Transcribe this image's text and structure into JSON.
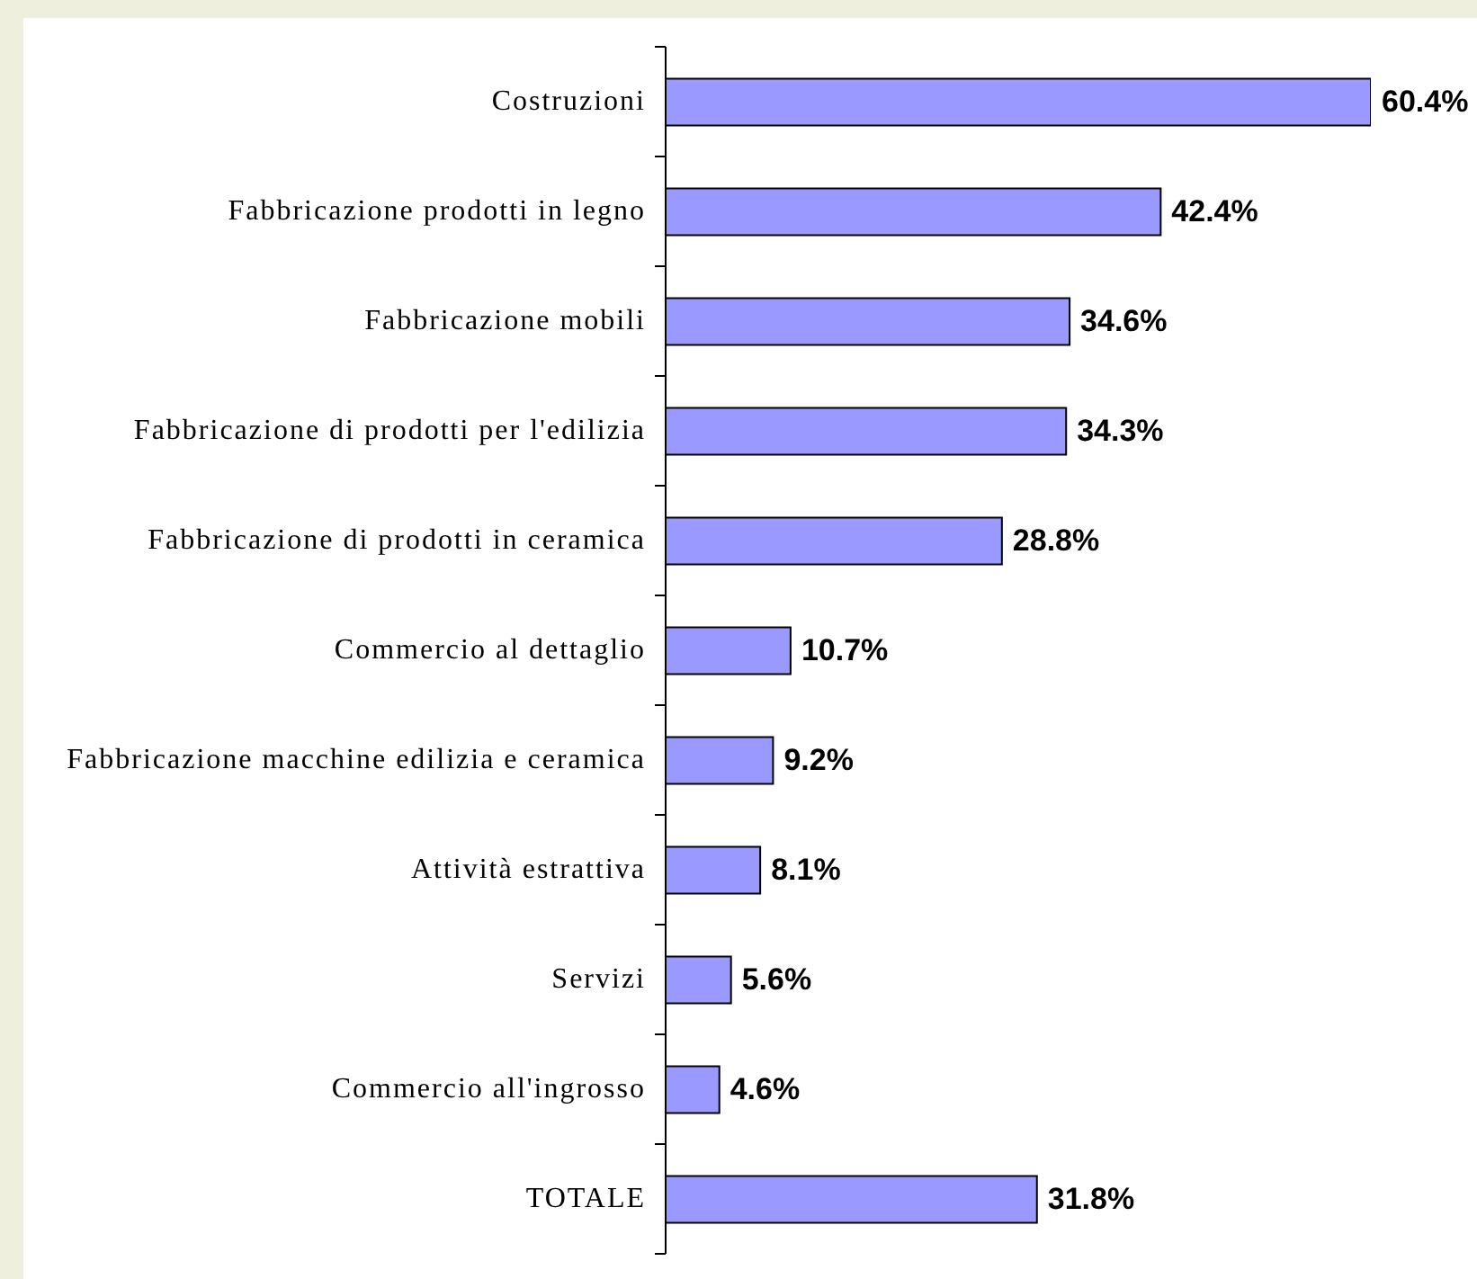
{
  "chart_data": {
    "type": "bar",
    "orientation": "horizontal",
    "categories": [
      "Costruzioni",
      "Fabbricazione prodotti in legno",
      "Fabbricazione mobili",
      "Fabbricazione di prodotti per l'edilizia",
      "Fabbricazione di prodotti in ceramica",
      "Commercio al dettaglio",
      "Fabbricazione macchine edilizia e ceramica",
      "Attività estrattiva",
      "Servizi",
      "Commercio all'ingrosso",
      "TOTALE"
    ],
    "values": [
      60.4,
      42.4,
      34.6,
      34.3,
      28.8,
      10.7,
      9.2,
      8.1,
      5.6,
      4.6,
      31.8
    ],
    "value_labels": [
      "60.4%",
      "42.4%",
      "34.6%",
      "34.3%",
      "28.8%",
      "10.7%",
      "9.2%",
      "8.1%",
      "5.6%",
      "4.6%",
      "31.8%"
    ],
    "color": "#9999ff",
    "tick_labels": "y"
  }
}
